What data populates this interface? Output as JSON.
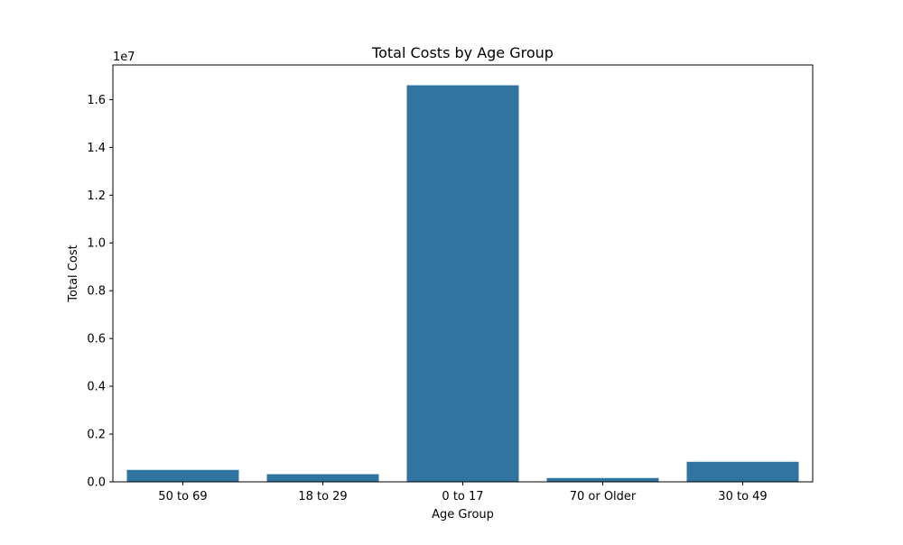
{
  "chart_data": {
    "type": "bar",
    "title": "Total Costs by Age Group",
    "xlabel": "Age Group",
    "ylabel": "Total Cost",
    "y_offset_text": "1e7",
    "y_scale": 10000000,
    "categories": [
      "50 to 69",
      "18 to 29",
      "0 to 17",
      "70 or Older",
      "30 to 49"
    ],
    "values": [
      500000,
      320000,
      16600000,
      160000,
      840000
    ],
    "ylim": [
      0,
      17450000
    ],
    "y_ticks": [
      0,
      2000000,
      4000000,
      6000000,
      8000000,
      10000000,
      12000000,
      14000000,
      16000000
    ],
    "y_tick_labels": [
      "0.0",
      "0.2",
      "0.4",
      "0.6",
      "0.8",
      "1.0",
      "1.2",
      "1.4",
      "1.6"
    ],
    "bar_color": "#3274a1",
    "grid": false,
    "legend": "none"
  }
}
